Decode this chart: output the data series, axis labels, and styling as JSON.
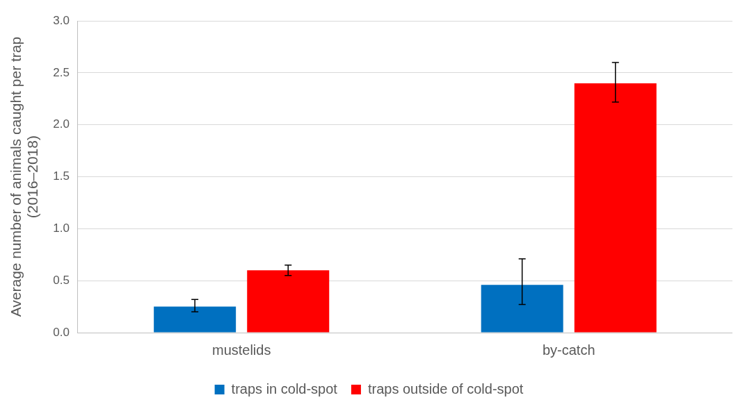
{
  "chart_data": {
    "type": "bar",
    "ylabel": "Average number of animals caught per trap (2016–2018)",
    "categories": [
      "mustelids",
      "by-catch"
    ],
    "series": [
      {
        "name": "traps in cold-spot",
        "color": "#0070c0",
        "values": [
          0.25,
          0.46
        ],
        "errors": [
          [
            0.2,
            0.32
          ],
          [
            0.27,
            0.71
          ]
        ]
      },
      {
        "name": "traps outside of cold-spot",
        "color": "#ff0000",
        "values": [
          0.6,
          2.4
        ],
        "errors": [
          [
            0.55,
            0.65
          ],
          [
            2.22,
            2.6
          ]
        ]
      }
    ],
    "ylim": [
      0,
      3
    ],
    "yticks": [
      {
        "value": 0,
        "label": "0.0"
      },
      {
        "value": 0.5,
        "label": "0.5"
      },
      {
        "value": 1,
        "label": "1.0"
      },
      {
        "value": 1.5,
        "label": "1.5"
      },
      {
        "value": 2,
        "label": "2.0"
      },
      {
        "value": 2.5,
        "label": "2.5"
      },
      {
        "value": 3,
        "label": "3.0"
      }
    ],
    "grid": "y",
    "legend": "bottom"
  }
}
